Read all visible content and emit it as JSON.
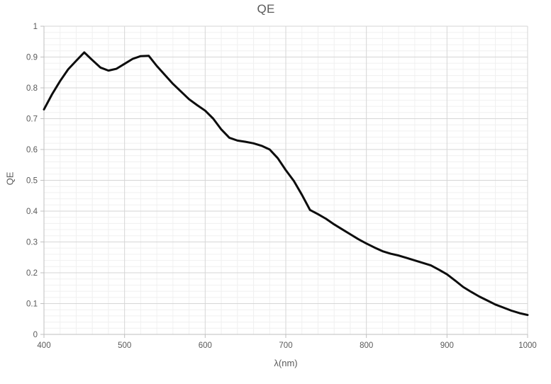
{
  "chart_data": {
    "type": "line",
    "title": "QE",
    "xlabel": "λ(nm)",
    "ylabel": "QE",
    "xlim": [
      400,
      1000
    ],
    "ylim": [
      0,
      1
    ],
    "x_ticks": [
      400,
      500,
      600,
      700,
      800,
      900,
      1000
    ],
    "x_tick_labels": [
      "400",
      "500",
      "600",
      "700",
      "800",
      "900",
      "1000"
    ],
    "y_ticks": [
      0,
      0.1,
      0.2,
      0.3,
      0.4,
      0.5,
      0.6,
      0.7,
      0.8,
      0.9,
      1
    ],
    "y_tick_labels": [
      "0",
      "0.1",
      "0.2",
      "0.3",
      "0.4",
      "0.5",
      "0.6",
      "0.7",
      "0.8",
      "0.9",
      "1"
    ],
    "x_minor_step": 20,
    "y_minor_step": 0.02,
    "grid": "major+minor",
    "legend": "none",
    "series": [
      {
        "name": "QE",
        "color": "#0d0d0d",
        "x": [
          400,
          410,
          420,
          430,
          440,
          450,
          460,
          470,
          480,
          490,
          500,
          510,
          520,
          530,
          540,
          550,
          560,
          570,
          580,
          590,
          600,
          610,
          620,
          630,
          640,
          650,
          660,
          670,
          680,
          690,
          700,
          710,
          720,
          730,
          740,
          750,
          760,
          770,
          780,
          790,
          800,
          810,
          820,
          830,
          840,
          850,
          860,
          870,
          880,
          890,
          900,
          910,
          920,
          930,
          940,
          950,
          960,
          970,
          980,
          990,
          1000
        ],
        "y": [
          0.73,
          0.779,
          0.822,
          0.86,
          0.888,
          0.915,
          0.89,
          0.866,
          0.856,
          0.862,
          0.878,
          0.894,
          0.903,
          0.904,
          0.871,
          0.842,
          0.813,
          0.788,
          0.763,
          0.744,
          0.726,
          0.7,
          0.665,
          0.638,
          0.629,
          0.625,
          0.62,
          0.612,
          0.6,
          0.572,
          0.533,
          0.498,
          0.453,
          0.404,
          0.39,
          0.375,
          0.357,
          0.341,
          0.325,
          0.309,
          0.295,
          0.282,
          0.27,
          0.262,
          0.256,
          0.248,
          0.24,
          0.232,
          0.224,
          0.21,
          0.195,
          0.175,
          0.154,
          0.138,
          0.123,
          0.11,
          0.097,
          0.087,
          0.077,
          0.069,
          0.063
        ]
      }
    ]
  },
  "colors": {
    "background": "#ffffff",
    "text": "#595959",
    "major_grid": "#d6d6d6",
    "minor_grid": "#f0f0f0",
    "axis": "#bfbfbf",
    "line": "#0d0d0d"
  }
}
